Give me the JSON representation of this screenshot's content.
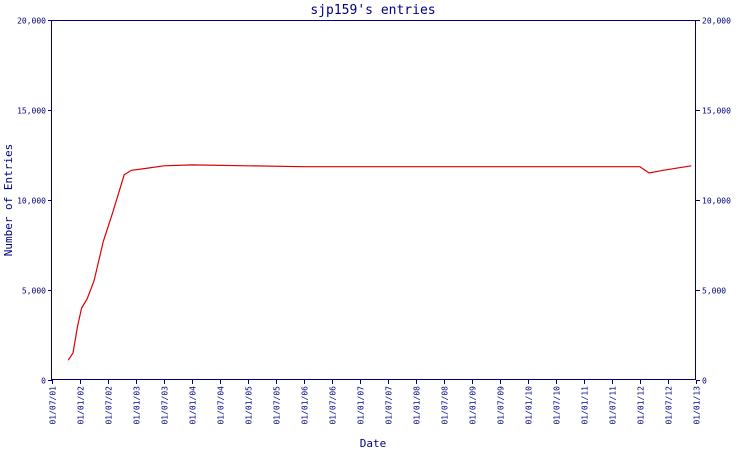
{
  "chart_data": {
    "type": "line",
    "title": "sjp159's entries",
    "xlabel": "Date",
    "ylabel": "Number of Entries",
    "ylim": [
      0,
      20000
    ],
    "grid": false,
    "y_ticks": [
      0,
      5000,
      10000,
      15000,
      20000
    ],
    "y_tick_labels": [
      "0",
      "5,000",
      "10,000",
      "15,000",
      "20,000"
    ],
    "x_ticks": [
      "01/07/01",
      "01/01/02",
      "01/07/02",
      "01/01/03",
      "01/07/03",
      "01/01/04",
      "01/07/04",
      "01/01/05",
      "01/07/05",
      "01/01/06",
      "01/07/06",
      "01/01/07",
      "01/07/07",
      "01/01/08",
      "01/07/08",
      "01/01/09",
      "01/07/09",
      "01/01/10",
      "01/07/10",
      "01/01/11",
      "01/07/11",
      "01/01/12",
      "01/07/12",
      "01/01/13"
    ],
    "colors": {
      "series": "#dd0000",
      "axis": "#000080",
      "background": "#ffffff"
    },
    "series": [
      {
        "points": [
          [
            "2001-10-15",
            1100
          ],
          [
            "2001-11-15",
            1500
          ],
          [
            "2001-12-15",
            3000
          ],
          [
            "2002-01-10",
            4000
          ],
          [
            "2002-02-15",
            4500
          ],
          [
            "2002-04-01",
            5500
          ],
          [
            "2002-06-01",
            7700
          ],
          [
            "2002-08-01",
            9300
          ],
          [
            "2002-10-15",
            11400
          ],
          [
            "2002-12-01",
            11650
          ],
          [
            "2003-03-01",
            11750
          ],
          [
            "2003-07-01",
            11900
          ],
          [
            "2004-01-01",
            11950
          ],
          [
            "2005-01-01",
            11900
          ],
          [
            "2006-01-01",
            11850
          ],
          [
            "2009-01-01",
            11850
          ],
          [
            "2012-01-01",
            11850
          ],
          [
            "2012-03-01",
            11500
          ],
          [
            "2012-06-01",
            11650
          ],
          [
            "2012-12-01",
            11900
          ]
        ]
      }
    ]
  }
}
